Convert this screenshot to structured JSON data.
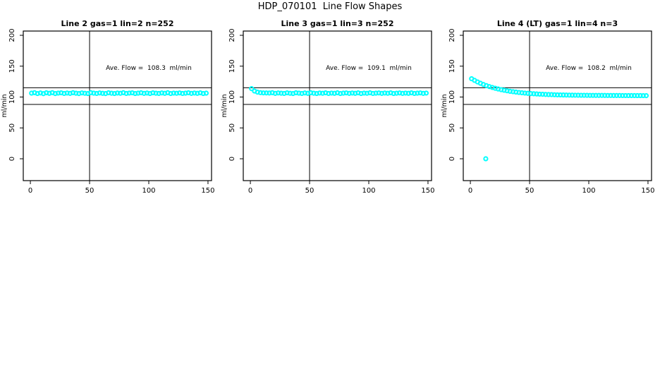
{
  "chart_data": {
    "type": "scatter",
    "title": "HDP_070101  Line Flow Shapes",
    "ylabel": "ml/min",
    "xticks": [
      0,
      50,
      100,
      150
    ],
    "yticks": [
      0,
      50,
      100,
      150,
      200
    ],
    "xlim": [
      -6,
      153
    ],
    "ylim": [
      -35.4,
      206.9
    ],
    "vline_x": 50,
    "hlines": [
      115,
      88
    ],
    "grid": "off",
    "marker": "open-circle",
    "x": [
      1,
      3.5,
      6,
      8.5,
      11,
      13.5,
      16,
      18.5,
      21,
      23.5,
      26,
      28.5,
      31,
      33.5,
      36,
      38.5,
      41,
      43.5,
      46,
      48.5,
      51,
      53.5,
      56,
      58.5,
      61,
      63.5,
      66,
      68.5,
      71,
      73.5,
      76,
      78.5,
      81,
      83.5,
      86,
      88.5,
      91,
      93.5,
      96,
      98.5,
      101,
      103.5,
      106,
      108.5,
      111,
      113.5,
      116,
      118.5,
      121,
      123.5,
      126,
      128.5,
      131,
      133.5,
      136,
      138.5,
      141,
      143.5,
      146,
      148.5
    ],
    "panels": [
      {
        "title": "Line 2 gas=1 lin=2 n=252",
        "annotation": "Ave. Flow =  108.3  ml/min",
        "ave_flow": 108.3,
        "n": 252,
        "y": [
          106.3,
          107.0,
          105.7,
          106.6,
          105.5,
          106.9,
          106.0,
          107.1,
          105.6,
          106.4,
          106.8,
          105.8,
          106.5,
          105.9,
          107.0,
          106.2,
          105.6,
          106.7,
          106.1,
          105.7,
          107.0,
          106.3,
          105.8,
          106.6,
          106.0,
          105.6,
          106.9,
          106.2,
          105.7,
          106.5,
          106.1,
          107.0,
          105.8,
          106.4,
          106.8,
          105.7,
          106.3,
          106.9,
          105.9,
          106.5,
          105.7,
          106.8,
          106.2,
          105.8,
          106.6,
          106.0,
          107.0,
          105.7,
          106.4,
          106.1,
          106.7,
          105.8,
          106.3,
          106.9,
          105.9,
          106.5,
          106.0,
          106.8,
          105.7,
          106.3
        ],
        "extra_points": []
      },
      {
        "title": "Line 3 gas=1 lin=3 n=252",
        "annotation": "Ave. Flow =  109.1  ml/min",
        "ave_flow": 109.1,
        "n": 252,
        "y": [
          113.6,
          109.7,
          107.9,
          107.1,
          106.7,
          106.6,
          106.5,
          107.0,
          105.9,
          106.6,
          106.2,
          105.8,
          106.8,
          106.1,
          105.7,
          106.9,
          106.3,
          105.8,
          106.6,
          106.0,
          106.9,
          106.2,
          105.7,
          106.5,
          106.1,
          106.8,
          105.8,
          106.4,
          106.0,
          106.9,
          105.7,
          106.3,
          106.7,
          105.9,
          106.5,
          106.0,
          106.8,
          105.7,
          106.4,
          106.1,
          106.9,
          105.8,
          106.3,
          106.6,
          105.9,
          106.5,
          106.1,
          106.8,
          105.7,
          106.2,
          106.6,
          105.9,
          106.4,
          106.0,
          106.8,
          105.8,
          106.3,
          106.7,
          105.9,
          106.4
        ],
        "extra_points": []
      },
      {
        "title": "Line 4 (LT) gas=1 lin=4 n=3",
        "annotation": "Ave. Flow =  108.2  ml/min",
        "ave_flow": 108.2,
        "n": 3,
        "y": [
          129.7,
          127.0,
          124.5,
          122.3,
          120.3,
          118.5,
          116.9,
          115.5,
          114.2,
          113.0,
          111.9,
          111.0,
          110.1,
          109.3,
          108.6,
          108.0,
          107.4,
          106.9,
          106.4,
          106.0,
          105.6,
          105.3,
          105.0,
          104.7,
          104.5,
          104.2,
          104.0,
          103.9,
          103.7,
          103.5,
          103.4,
          103.3,
          103.2,
          103.1,
          103.0,
          102.95,
          102.9,
          102.85,
          102.8,
          102.75,
          102.7,
          102.68,
          102.65,
          102.62,
          102.6,
          102.57,
          102.55,
          102.52,
          102.5,
          102.47,
          102.45,
          102.42,
          102.4,
          102.38,
          102.35,
          102.32,
          102.3,
          102.28,
          102.25,
          102.22
        ],
        "extra_points": [
          [
            13,
            0
          ]
        ]
      }
    ]
  },
  "colors": {
    "marker": "#00ffff",
    "axis": "#000000",
    "background": "#ffffff"
  }
}
